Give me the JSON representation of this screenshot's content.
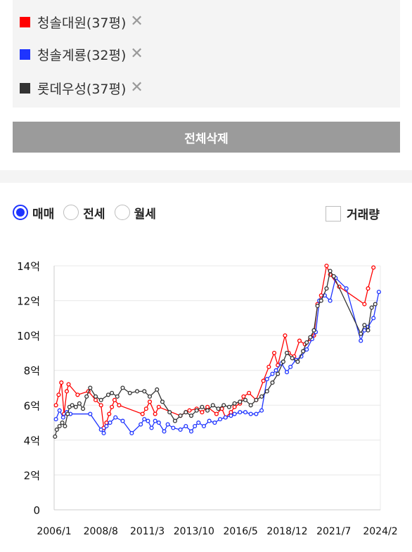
{
  "selected": [
    {
      "name": "청솔대원(37평)",
      "color": "#ff0000"
    },
    {
      "name": "청솔계룡(32평)",
      "color": "#1e34ff"
    },
    {
      "name": "롯데우성(37평)",
      "color": "#333333"
    }
  ],
  "remove_symbol": "✕",
  "delete_all_label": "전체삭제",
  "options": {
    "radios": [
      {
        "label": "매매",
        "selected": true
      },
      {
        "label": "전세",
        "selected": false
      },
      {
        "label": "월세",
        "selected": false
      }
    ],
    "volume_label": "거래량",
    "volume_checked": false
  },
  "chart_data": {
    "type": "line",
    "y_unit": "억",
    "ylim": [
      0,
      14
    ],
    "y_ticks": [
      0,
      2,
      4,
      6,
      8,
      10,
      12,
      14
    ],
    "y_tick_labels": [
      "0",
      "2억",
      "4억",
      "6억",
      "8억",
      "10억",
      "12억",
      "14억"
    ],
    "x_range": [
      2006.0,
      2024.083
    ],
    "x_ticks": [
      2006.0,
      2008.583,
      2011.167,
      2013.75,
      2016.333,
      2018.917,
      2021.5,
      2024.083
    ],
    "x_tick_labels": [
      "2006/1",
      "2008/8",
      "2011/3",
      "2013/10",
      "2016/5",
      "2018/12",
      "2021/7",
      "2024/2"
    ],
    "grid": true,
    "series": [
      {
        "name": "청솔대원(37평)",
        "color": "#ff0000",
        "x": [
          2006.1,
          2006.25,
          2006.4,
          2006.55,
          2006.7,
          2006.8,
          2007.3,
          2007.9,
          2008.3,
          2008.6,
          2008.75,
          2008.9,
          2009.05,
          2009.2,
          2009.35,
          2009.6,
          2010.9,
          2011.1,
          2011.3,
          2011.6,
          2011.8,
          2013.0,
          2013.3,
          2013.5,
          2013.9,
          2014.2,
          2014.5,
          2015.0,
          2015.3,
          2015.5,
          2015.8,
          2016.0,
          2016.3,
          2016.5,
          2016.8,
          2017.2,
          2017.6,
          2017.9,
          2018.2,
          2018.4,
          2018.8,
          2019.0,
          2019.3,
          2019.6,
          2019.9,
          2020.2,
          2020.4,
          2020.6,
          2020.8,
          2021.1,
          2021.3,
          2021.8,
          2023.2,
          2023.4,
          2023.7
        ],
        "y": [
          6.0,
          6.6,
          7.3,
          5.5,
          6.8,
          7.2,
          6.6,
          6.8,
          6.3,
          6.0,
          4.7,
          5.0,
          5.5,
          5.9,
          6.3,
          6.0,
          5.5,
          5.8,
          6.2,
          5.5,
          5.9,
          5.4,
          5.6,
          5.7,
          5.8,
          5.6,
          5.9,
          5.5,
          5.8,
          5.3,
          5.6,
          5.9,
          6.1,
          6.5,
          6.7,
          6.3,
          7.4,
          8.2,
          9.0,
          8.3,
          10.0,
          9.0,
          8.8,
          9.7,
          9.5,
          9.8,
          10.0,
          11.8,
          12.3,
          14.0,
          13.5,
          12.8,
          11.8,
          12.7,
          13.9
        ]
      },
      {
        "name": "청솔계룡(32평)",
        "color": "#1e34ff",
        "x": [
          2006.1,
          2006.3,
          2006.5,
          2006.7,
          2006.9,
          2008.0,
          2008.6,
          2008.75,
          2008.9,
          2009.1,
          2009.4,
          2009.8,
          2010.3,
          2010.8,
          2011.0,
          2011.2,
          2011.4,
          2011.6,
          2011.8,
          2012.1,
          2012.3,
          2012.6,
          2013.0,
          2013.3,
          2013.6,
          2013.8,
          2014.0,
          2014.3,
          2014.6,
          2014.9,
          2015.2,
          2015.5,
          2015.8,
          2016.0,
          2016.3,
          2016.6,
          2016.9,
          2017.2,
          2017.5,
          2017.8,
          2018.1,
          2018.3,
          2018.6,
          2018.9,
          2019.1,
          2019.4,
          2019.7,
          2020.0,
          2020.3,
          2020.5,
          2020.7,
          2021.0,
          2021.3,
          2021.6,
          2022.2,
          2023.0,
          2023.2,
          2023.4,
          2023.7,
          2024.0
        ],
        "y": [
          5.2,
          5.7,
          5.3,
          5.6,
          5.5,
          5.5,
          4.6,
          4.4,
          4.8,
          5.0,
          5.3,
          5.1,
          4.4,
          4.9,
          5.2,
          5.1,
          4.7,
          5.1,
          5.0,
          4.5,
          4.9,
          4.7,
          4.6,
          4.8,
          4.5,
          4.8,
          5.0,
          4.8,
          5.1,
          5.0,
          5.2,
          5.3,
          5.4,
          5.5,
          5.6,
          5.6,
          5.5,
          5.5,
          5.7,
          7.5,
          7.8,
          8.0,
          8.4,
          7.9,
          8.2,
          8.6,
          8.8,
          9.2,
          9.8,
          10.2,
          12.0,
          12.3,
          12.0,
          13.3,
          12.7,
          9.7,
          10.3,
          10.5,
          11.0,
          12.5
        ]
      },
      {
        "name": "롯데우성(37평)",
        "color": "#333333",
        "x": [
          2006.05,
          2006.15,
          2006.3,
          2006.45,
          2006.6,
          2006.75,
          2006.85,
          2007.0,
          2007.2,
          2007.4,
          2007.6,
          2007.8,
          2008.0,
          2008.3,
          2008.6,
          2009.0,
          2009.2,
          2009.5,
          2009.8,
          2010.2,
          2010.6,
          2011.0,
          2011.3,
          2011.7,
          2012.0,
          2012.4,
          2012.7,
          2013.0,
          2013.3,
          2013.6,
          2013.9,
          2014.2,
          2014.5,
          2014.8,
          2015.1,
          2015.4,
          2015.7,
          2016.0,
          2016.3,
          2016.6,
          2016.9,
          2017.2,
          2017.5,
          2017.8,
          2018.1,
          2018.4,
          2018.7,
          2018.9,
          2019.2,
          2019.5,
          2019.8,
          2020.0,
          2020.2,
          2020.4,
          2020.6,
          2020.8,
          2021.1,
          2021.3,
          2021.5,
          2023.0,
          2023.2,
          2023.4,
          2023.6,
          2023.8
        ],
        "y": [
          4.2,
          4.6,
          4.8,
          5.0,
          4.8,
          5.5,
          5.9,
          6.0,
          5.9,
          6.1,
          5.8,
          6.5,
          7.0,
          6.5,
          6.3,
          6.6,
          6.7,
          6.5,
          7.0,
          6.7,
          6.8,
          6.8,
          6.5,
          6.9,
          6.2,
          5.6,
          5.1,
          5.4,
          5.6,
          5.4,
          5.7,
          5.9,
          5.7,
          6.0,
          5.8,
          6.0,
          5.9,
          6.1,
          6.2,
          6.3,
          6.0,
          6.3,
          6.5,
          6.8,
          7.3,
          7.8,
          8.5,
          9.0,
          8.7,
          8.5,
          9.1,
          9.6,
          9.9,
          10.3,
          11.7,
          12.0,
          12.7,
          13.7,
          13.4,
          10.1,
          10.6,
          10.3,
          11.6,
          11.8
        ]
      }
    ]
  }
}
